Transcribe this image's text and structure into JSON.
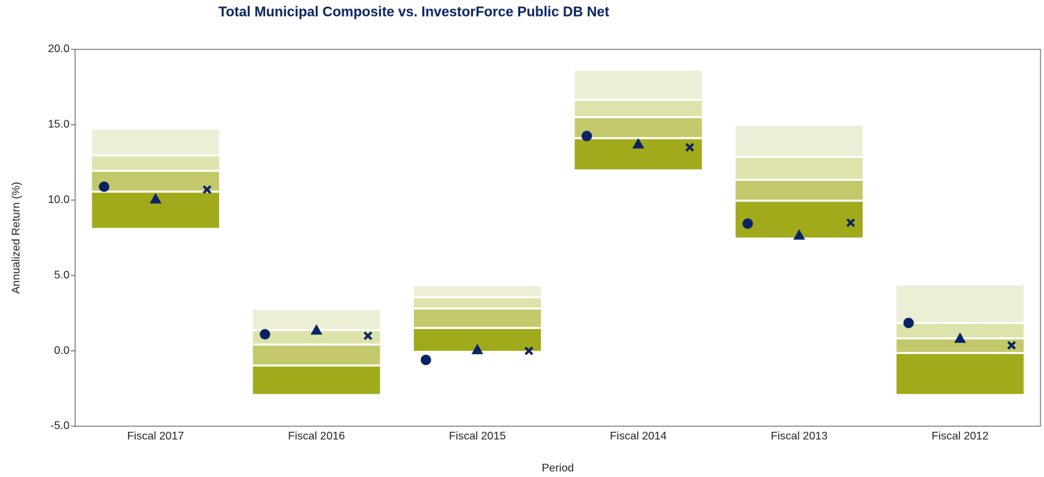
{
  "chart_data": {
    "type": "percentile",
    "title": "Total Municipal Composite vs. InvestorForce Public DB Net",
    "x_label": "Period",
    "y_label": "Annualized Return (%)",
    "categories": [
      "Fiscal 2017",
      "Fiscal 2016",
      "Fiscal 2015",
      "Fiscal 2014",
      "Fiscal 2013",
      "Fiscal 2012"
    ],
    "bounds": [
      {
        "values": [
          14.67,
          2.72,
          4.29,
          18.59,
          14.94,
          4.34
        ]
      },
      {
        "values": [
          12.96,
          1.38,
          3.55,
          16.65,
          12.87,
          1.85
        ]
      },
      {
        "values": [
          11.95,
          0.42,
          2.81,
          15.5,
          11.35,
          0.83
        ]
      },
      {
        "values": [
          10.56,
          -0.97,
          1.52,
          14.11,
          9.96,
          -0.14
        ]
      },
      {
        "values": [
          8.16,
          -2.86,
          0,
          12.04,
          7.52,
          -2.86
        ]
      }
    ],
    "band_colors": [
      "#ecefd6",
      "#dde3aa",
      "#c3c96a",
      "#a0aa1b"
    ],
    "markers": [
      {
        "shape": "circle",
        "color": "#0a2463",
        "values": [
          10.89,
          1.1,
          -0.6,
          14.25,
          8.44,
          1.85
        ]
      },
      {
        "shape": "triangle",
        "color": "#0a2463",
        "values": [
          10.1,
          1.4,
          0.1,
          13.75,
          7.7,
          0.85
        ]
      },
      {
        "shape": "cross",
        "color": "#0a2463",
        "values": [
          10.7,
          1.0,
          0.0,
          13.5,
          8.5,
          0.37
        ]
      }
    ],
    "ylim": [
      -5,
      20
    ],
    "yticks": [
      {
        "value": -5,
        "label": "-5.0"
      },
      {
        "value": 0,
        "label": "0.0"
      },
      {
        "value": 5,
        "label": "5.0"
      },
      {
        "value": 10,
        "label": "10.0"
      },
      {
        "value": 15,
        "label": "15.0"
      },
      {
        "value": 20,
        "label": "20.0"
      }
    ]
  }
}
